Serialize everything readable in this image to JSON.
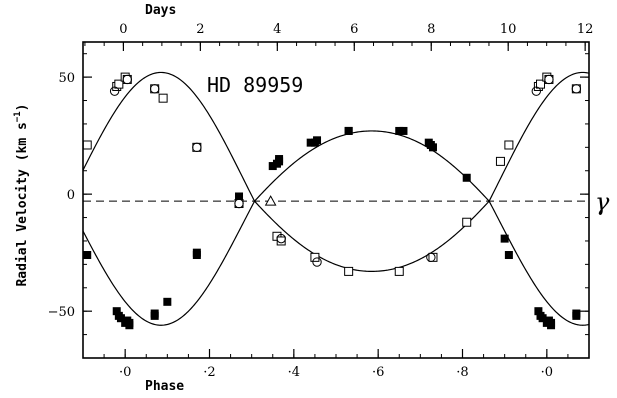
{
  "chart_data": {
    "type": "scatter",
    "title": "",
    "annotation": "HD 89959",
    "ylabel": "Radial Velocity (km s",
    "ylabel_sup": "−1",
    "ylabel_close": ")",
    "xlabel": "Phase",
    "x2label": "Days",
    "gamma_label": "γ",
    "xlim": [
      -0.1,
      1.1
    ],
    "ylim": [
      -70,
      65
    ],
    "x2lim": [
      -1.05,
      12.1
    ],
    "x_ticks": [
      0,
      0.2,
      0.4,
      0.6,
      0.8,
      1.0
    ],
    "x_ticklabels": [
      "·0",
      "·2",
      "·4",
      "·6",
      "·8",
      "·0"
    ],
    "x_minor_step": 0.05,
    "y_ticks": [
      -50,
      0,
      50
    ],
    "y_ticklabels": [
      "−50",
      "0",
      "50"
    ],
    "y_minor_step": 10,
    "x2_ticks": [
      0,
      2,
      4,
      6,
      8,
      10,
      12
    ],
    "x2_ticklabels": [
      "0",
      "2",
      "4",
      "6",
      "8",
      "10",
      "12"
    ],
    "x2_minor_step": 0.5,
    "systemic_velocity": -3,
    "grid": false,
    "series": [
      {
        "marker": "filled-square",
        "points": [
          [
            -0.09,
            -26
          ],
          [
            -0.02,
            -50
          ],
          [
            -0.015,
            -52
          ],
          [
            -0.01,
            -53
          ],
          [
            0.0,
            -55
          ],
          [
            0.005,
            -54
          ],
          [
            0.01,
            -55
          ],
          [
            0.01,
            -56
          ],
          [
            0.07,
            -51
          ],
          [
            0.07,
            -52
          ],
          [
            0.1,
            -46
          ],
          [
            0.17,
            -26
          ],
          [
            0.17,
            -25
          ],
          [
            0.27,
            -1
          ],
          [
            0.35,
            12
          ],
          [
            0.36,
            13
          ],
          [
            0.365,
            14
          ],
          [
            0.365,
            15
          ],
          [
            0.44,
            22
          ],
          [
            0.45,
            22
          ],
          [
            0.455,
            23
          ],
          [
            0.53,
            27
          ],
          [
            0.53,
            27
          ],
          [
            0.65,
            27
          ],
          [
            0.66,
            27
          ],
          [
            0.72,
            22
          ],
          [
            0.725,
            21
          ],
          [
            0.73,
            20
          ],
          [
            0.81,
            7
          ],
          [
            0.9,
            -19
          ],
          [
            0.91,
            -26
          ],
          [
            0.98,
            -50
          ],
          [
            0.985,
            -52
          ],
          [
            0.99,
            -53
          ],
          [
            1.0,
            -55
          ],
          [
            1.005,
            -54
          ],
          [
            1.01,
            -55
          ],
          [
            1.01,
            -56
          ],
          [
            1.07,
            -51
          ],
          [
            1.07,
            -52
          ]
        ]
      },
      {
        "marker": "open-square",
        "points": [
          [
            -0.09,
            21
          ],
          [
            -0.02,
            46
          ],
          [
            -0.015,
            47
          ],
          [
            0.0,
            50
          ],
          [
            0.005,
            49
          ],
          [
            0.07,
            45
          ],
          [
            0.09,
            41
          ],
          [
            0.17,
            20
          ],
          [
            0.27,
            -4
          ],
          [
            0.36,
            -18
          ],
          [
            0.37,
            -20
          ],
          [
            0.45,
            -27
          ],
          [
            0.53,
            -33
          ],
          [
            0.65,
            -33
          ],
          [
            0.73,
            -27
          ],
          [
            0.81,
            -12
          ],
          [
            0.89,
            14
          ],
          [
            0.91,
            21
          ],
          [
            0.98,
            46
          ],
          [
            0.985,
            47
          ],
          [
            1.0,
            50
          ],
          [
            1.005,
            49
          ],
          [
            1.07,
            45
          ]
        ]
      },
      {
        "marker": "open-circle",
        "points": [
          [
            -0.025,
            44
          ],
          [
            0.005,
            49
          ],
          [
            0.07,
            45
          ],
          [
            0.17,
            20
          ],
          [
            0.27,
            -4
          ],
          [
            0.37,
            -19
          ],
          [
            0.455,
            -29
          ],
          [
            0.725,
            -27
          ],
          [
            0.975,
            44
          ],
          [
            1.005,
            49
          ],
          [
            1.07,
            45
          ]
        ]
      },
      {
        "marker": "open-triangle",
        "points": [
          [
            0.345,
            -3
          ]
        ]
      }
    ],
    "curves": [
      {
        "name": "",
        "gamma": -3,
        "K": 42,
        "center": 0.085,
        "sign": -1,
        "ecc_shape": 0.18
      },
      {
        "name": "",
        "gamma": -3,
        "K": 42,
        "center": 0.085,
        "sign": 1,
        "ecc_shape": 0.18
      }
    ],
    "colors": {
      "axis": "#000000",
      "marker": "#000000",
      "curve": "#000000"
    }
  }
}
